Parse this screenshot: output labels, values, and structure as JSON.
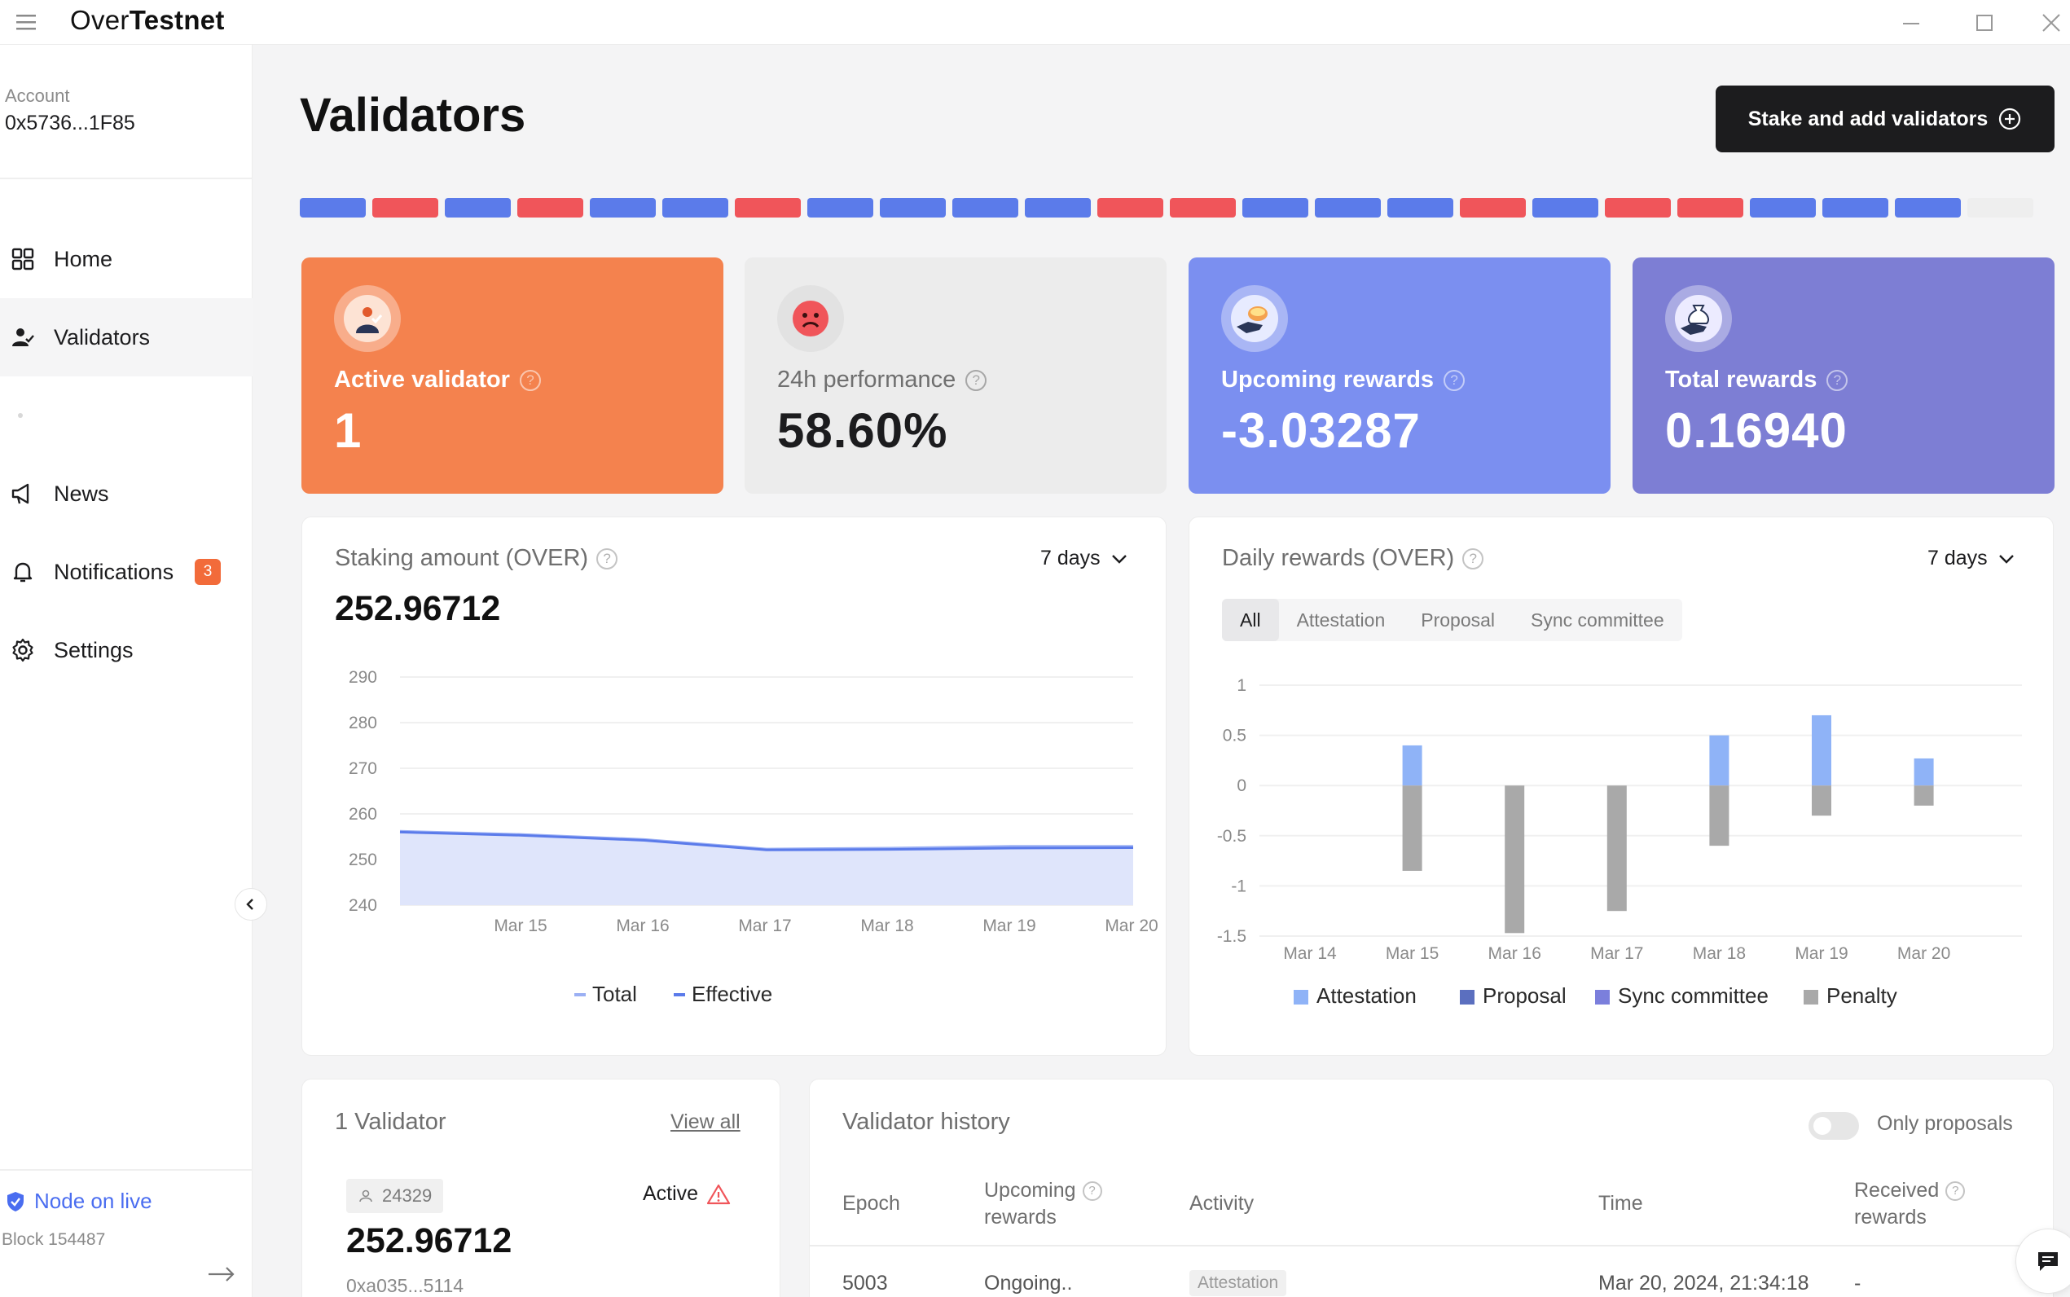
{
  "app": {
    "title_prefix": "Over",
    "title_bold": "Testnet"
  },
  "account": {
    "label": "Account",
    "address": "0x5736...1F85"
  },
  "sidebar": {
    "items": [
      {
        "label": "Home",
        "icon": "grid-icon"
      },
      {
        "label": "Validators",
        "icon": "user-check-icon"
      },
      {
        "label": "News",
        "icon": "megaphone-icon"
      },
      {
        "label": "Notifications",
        "icon": "bell-icon",
        "badge": "3"
      },
      {
        "label": "Settings",
        "icon": "gear-icon"
      }
    ],
    "active": "Validators"
  },
  "node": {
    "status": "Node on live",
    "block": "Block 154487"
  },
  "page": {
    "title": "Validators",
    "stake_button": "Stake and add validators"
  },
  "performance_strip": [
    "blue",
    "red",
    "blue",
    "red",
    "blue",
    "blue",
    "red",
    "blue",
    "blue",
    "blue",
    "blue",
    "red",
    "red",
    "blue",
    "blue",
    "blue",
    "red",
    "blue",
    "red",
    "red",
    "blue",
    "blue",
    "blue",
    "empty"
  ],
  "colors": {
    "blue": "#5b7bea",
    "red": "#f0555a",
    "orange": "#f4824e",
    "purple_blue": "#7b8ff0",
    "purple": "#7d7ed4",
    "grey_bar": "#a9a9a9",
    "attestation": "#8fb3f7"
  },
  "stats": [
    {
      "label": "Active validator",
      "value": "1"
    },
    {
      "label": "24h performance",
      "value": "58.60%"
    },
    {
      "label": "Upcoming rewards",
      "value": "-3.03287"
    },
    {
      "label": "Total rewards",
      "value": "0.16940"
    }
  ],
  "staking": {
    "title": "Staking amount (OVER)",
    "range": "7 days",
    "amount": "252.96712",
    "legend": [
      "Total",
      "Effective"
    ]
  },
  "rewards": {
    "title": "Daily rewards (OVER)",
    "range": "7 days",
    "tabs": [
      "All",
      "Attestation",
      "Proposal",
      "Sync committee"
    ],
    "legend": [
      "Attestation",
      "Proposal",
      "Sync committee",
      "Penalty"
    ]
  },
  "validator_card": {
    "title": "1 Validator",
    "view_all": "View all",
    "index": "24329",
    "status": "Active",
    "amount": "252.96712",
    "address": "0xa035...5114"
  },
  "history": {
    "title": "Validator history",
    "toggle_label": "Only proposals",
    "headers": {
      "epoch": "Epoch",
      "upcoming_1": "Upcoming",
      "upcoming_2": "rewards",
      "activity": "Activity",
      "time": "Time",
      "received_1": "Received",
      "received_2": "rewards"
    },
    "rows": [
      {
        "epoch": "5003",
        "upcoming": "Ongoing..",
        "activity": "Attestation",
        "time": "Mar 20, 2024, 21:34:18",
        "received": "-"
      }
    ]
  },
  "chart_data": [
    {
      "type": "area",
      "title": "Staking amount (OVER)",
      "x": [
        "Mar 14",
        "Mar 15",
        "Mar 16",
        "Mar 17",
        "Mar 18",
        "Mar 19",
        "Mar 20"
      ],
      "xticks": [
        "Mar 15",
        "Mar 16",
        "Mar 17",
        "Mar 18",
        "Mar 19",
        "Mar 20"
      ],
      "yticks": [
        "290",
        "280",
        "270",
        "260",
        "250",
        "240"
      ],
      "ylim": [
        240,
        290
      ],
      "series": [
        {
          "name": "Total",
          "values": [
            256.2,
            255.5,
            254.4,
            252.3,
            252.5,
            252.9,
            252.9
          ]
        },
        {
          "name": "Effective",
          "values": [
            256.0,
            255.3,
            254.2,
            252.1,
            252.2,
            252.5,
            252.6
          ]
        }
      ],
      "legend_position": "bottom",
      "grid": true
    },
    {
      "type": "bar",
      "title": "Daily rewards (OVER)",
      "categories": [
        "Mar 14",
        "Mar 15",
        "Mar 16",
        "Mar 17",
        "Mar 18",
        "Mar 19",
        "Mar 20"
      ],
      "yticks": [
        "1",
        "0.5",
        "0",
        "-0.5",
        "-1",
        "-1.5"
      ],
      "ylim": [
        -1.5,
        1
      ],
      "series": [
        {
          "name": "Attestation",
          "values": [
            0,
            0.4,
            0,
            0,
            0.5,
            0.7,
            0.27
          ]
        },
        {
          "name": "Proposal",
          "values": [
            0,
            0,
            0,
            0,
            0,
            0,
            0
          ]
        },
        {
          "name": "Sync committee",
          "values": [
            0,
            0,
            0,
            0,
            0,
            0,
            0
          ]
        },
        {
          "name": "Penalty",
          "values": [
            0,
            -0.85,
            -1.47,
            -1.25,
            -0.6,
            -0.3,
            -0.2
          ]
        }
      ],
      "stacked": true,
      "legend_position": "bottom",
      "grid": true
    }
  ]
}
